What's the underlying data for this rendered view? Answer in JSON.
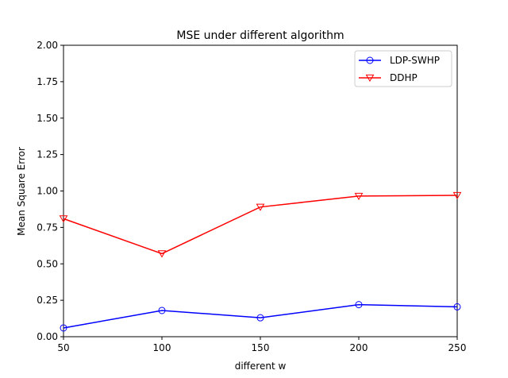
{
  "chart_data": {
    "type": "line",
    "title": "MSE under different algorithm",
    "xlabel": "different w",
    "ylabel": "Mean Square Error",
    "x": [
      50,
      100,
      150,
      200,
      250
    ],
    "xlim": [
      50,
      250
    ],
    "ylim": [
      0,
      2
    ],
    "xticks": [
      "50",
      "100",
      "150",
      "200",
      "250"
    ],
    "yticks": [
      "0.00",
      "0.25",
      "0.50",
      "0.75",
      "1.00",
      "1.25",
      "1.50",
      "1.75",
      "2.00"
    ],
    "grid": false,
    "legend_position": "top-right",
    "series": [
      {
        "name": "LDP-SWHP",
        "color": "#0000ff",
        "marker": "circle",
        "values": [
          0.06,
          0.18,
          0.13,
          0.22,
          0.205
        ]
      },
      {
        "name": "DDHP",
        "color": "#ff0000",
        "marker": "triangle-down",
        "values": [
          0.81,
          0.57,
          0.89,
          0.965,
          0.97
        ]
      }
    ]
  }
}
